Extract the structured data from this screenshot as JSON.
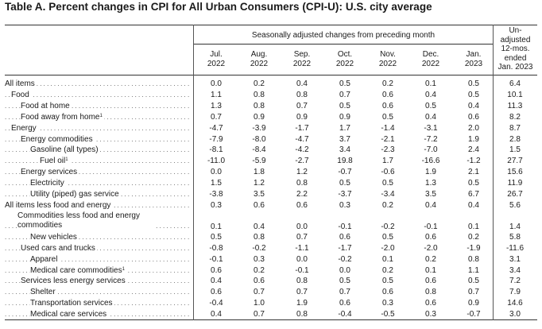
{
  "title": "Table A. Percent changes in CPI for All Urban Consumers (CPI-U): U.S. city average",
  "header": {
    "span_label": "Seasonally adjusted changes from preceding month",
    "months": [
      {
        "line1": "Jul.",
        "line2": "2022"
      },
      {
        "line1": "Aug.",
        "line2": "2022"
      },
      {
        "line1": "Sep.",
        "line2": "2022"
      },
      {
        "line1": "Oct.",
        "line2": "2022"
      },
      {
        "line1": "Nov.",
        "line2": "2022"
      },
      {
        "line1": "Dec.",
        "line2": "2022"
      },
      {
        "line1": "Jan.",
        "line2": "2023"
      }
    ],
    "last_col": [
      "Un-",
      "adjusted",
      "12-mos.",
      "ended",
      "Jan. 2023"
    ]
  },
  "rows": [
    {
      "label": "All items",
      "sup": "",
      "values": [
        "0.0",
        "0.2",
        "0.4",
        "0.5",
        "0.2",
        "0.1",
        "0.5",
        "6.4"
      ]
    },
    {
      "label": "Food",
      "sup": "",
      "values": [
        "1.1",
        "0.8",
        "0.8",
        "0.7",
        "0.6",
        "0.4",
        "0.5",
        "10.1"
      ]
    },
    {
      "label": "Food at home",
      "sup": "",
      "values": [
        "1.3",
        "0.8",
        "0.7",
        "0.5",
        "0.6",
        "0.5",
        "0.4",
        "11.3"
      ]
    },
    {
      "label": "Food away from home",
      "sup": "1",
      "values": [
        "0.7",
        "0.9",
        "0.9",
        "0.9",
        "0.5",
        "0.4",
        "0.6",
        "8.2"
      ]
    },
    {
      "label": "Energy",
      "sup": "",
      "values": [
        "-4.7",
        "-3.9",
        "-1.7",
        "1.7",
        "-1.4",
        "-3.1",
        "2.0",
        "8.7"
      ]
    },
    {
      "label": "Energy commodities",
      "sup": "",
      "values": [
        "-7.9",
        "-8.0",
        "-4.7",
        "3.7",
        "-2.1",
        "-7.2",
        "1.9",
        "2.8"
      ]
    },
    {
      "label": "Gasoline (all types)",
      "sup": "",
      "values": [
        "-8.1",
        "-8.4",
        "-4.2",
        "3.4",
        "-2.3",
        "-7.0",
        "2.4",
        "1.5"
      ]
    },
    {
      "label": "Fuel oil",
      "sup": "1",
      "values": [
        "-11.0",
        "-5.9",
        "-2.7",
        "19.8",
        "1.7",
        "-16.6",
        "-1.2",
        "27.7"
      ]
    },
    {
      "label": "Energy services",
      "sup": "",
      "values": [
        "0.0",
        "1.8",
        "1.2",
        "-0.7",
        "-0.6",
        "1.9",
        "2.1",
        "15.6"
      ]
    },
    {
      "label": "Electricity",
      "sup": "",
      "values": [
        "1.5",
        "1.2",
        "0.8",
        "0.5",
        "0.5",
        "1.3",
        "0.5",
        "11.9"
      ]
    },
    {
      "label": "Utility (piped) gas service",
      "sup": "",
      "values": [
        "-3.8",
        "3.5",
        "2.2",
        "-3.7",
        "-3.4",
        "3.5",
        "6.7",
        "26.7"
      ]
    },
    {
      "label": "All items less food and energy",
      "sup": "",
      "values": [
        "0.3",
        "0.6",
        "0.6",
        "0.3",
        "0.2",
        "0.4",
        "0.4",
        "5.6"
      ]
    },
    {
      "label": "Commodities less food and energy commodities",
      "sup": "",
      "values": [
        "0.1",
        "0.4",
        "0.0",
        "-0.1",
        "-0.2",
        "-0.1",
        "0.1",
        "1.4"
      ]
    },
    {
      "label": "New vehicles",
      "sup": "",
      "values": [
        "0.5",
        "0.8",
        "0.7",
        "0.6",
        "0.5",
        "0.6",
        "0.2",
        "5.8"
      ]
    },
    {
      "label": "Used cars and trucks",
      "sup": "",
      "values": [
        "-0.8",
        "-0.2",
        "-1.1",
        "-1.7",
        "-2.0",
        "-2.0",
        "-1.9",
        "-11.6"
      ]
    },
    {
      "label": "Apparel",
      "sup": "",
      "values": [
        "-0.1",
        "0.3",
        "0.0",
        "-0.2",
        "0.1",
        "0.2",
        "0.8",
        "3.1"
      ]
    },
    {
      "label": "Medical care commodities",
      "sup": "1",
      "values": [
        "0.6",
        "0.2",
        "-0.1",
        "0.0",
        "0.2",
        "0.1",
        "1.1",
        "3.4"
      ]
    },
    {
      "label": "Services less energy services",
      "sup": "",
      "values": [
        "0.4",
        "0.6",
        "0.8",
        "0.5",
        "0.5",
        "0.6",
        "0.5",
        "7.2"
      ]
    },
    {
      "label": "Shelter",
      "sup": "",
      "values": [
        "0.6",
        "0.7",
        "0.7",
        "0.7",
        "0.6",
        "0.8",
        "0.7",
        "7.9"
      ]
    },
    {
      "label": "Transportation services",
      "sup": "",
      "values": [
        "-0.4",
        "1.0",
        "1.9",
        "0.6",
        "0.3",
        "0.6",
        "0.9",
        "14.6"
      ]
    },
    {
      "label": "Medical care services",
      "sup": "",
      "values": [
        "0.4",
        "0.7",
        "0.8",
        "-0.4",
        "-0.5",
        "0.3",
        "-0.7",
        "3.0"
      ]
    }
  ]
}
